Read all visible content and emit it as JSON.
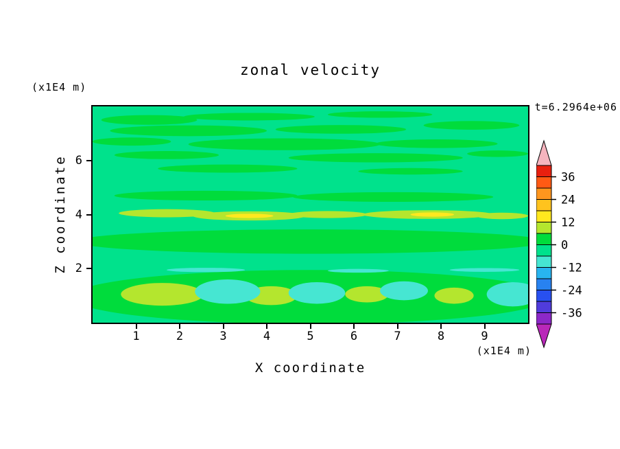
{
  "chart_data": {
    "type": "heatmap",
    "title": "zonal velocity",
    "timestamp": "t=6.2964e+06",
    "xlabel": "X coordinate",
    "ylabel": "Z coordinate",
    "x_units": "(x1E4 m)",
    "y_units": "(x1E4 m)",
    "xlim": [
      0,
      10
    ],
    "ylim": [
      0,
      8
    ],
    "x_ticks": [
      "1",
      "2",
      "3",
      "4",
      "5",
      "6",
      "7",
      "8",
      "9"
    ],
    "y_ticks": [
      "2",
      "4",
      "6"
    ],
    "grid": false,
    "legend_position": "right-colorbar",
    "contour_interval": 6,
    "colorbar": {
      "labels": [
        "36",
        "24",
        "12",
        "0",
        "-12",
        "-24",
        "-36"
      ],
      "label_values": [
        36,
        24,
        12,
        0,
        -12,
        -24,
        -36
      ],
      "range": [
        -42,
        42
      ],
      "above_range_color": "#F5B4BE",
      "below_range_color": "#B928B9",
      "segments_bottom_to_top": [
        {
          "from": -42,
          "to": -36,
          "color": "#8C28C8"
        },
        {
          "from": -36,
          "to": -30,
          "color": "#503CDC"
        },
        {
          "from": -30,
          "to": -24,
          "color": "#2850F0"
        },
        {
          "from": -24,
          "to": -18,
          "color": "#2882F0"
        },
        {
          "from": -18,
          "to": -12,
          "color": "#28B4F0"
        },
        {
          "from": -12,
          "to": -6,
          "color": "#46E6D2"
        },
        {
          "from": -6,
          "to": 0,
          "color": "#00E28C"
        },
        {
          "from": 0,
          "to": 6,
          "color": "#00DC3C"
        },
        {
          "from": 6,
          "to": 12,
          "color": "#B4E62E"
        },
        {
          "from": 12,
          "to": 18,
          "color": "#FFE81E"
        },
        {
          "from": 18,
          "to": 24,
          "color": "#FFC31E"
        },
        {
          "from": 24,
          "to": 30,
          "color": "#FF961E"
        },
        {
          "from": 30,
          "to": 36,
          "color": "#FF5A14"
        },
        {
          "from": 36,
          "to": 42,
          "color": "#E8200F"
        }
      ]
    },
    "level_colors": {
      "neg12_neg6": "#46E6D2",
      "neg6_0": "#00E28C",
      "pos0_6": "#00DC3C",
      "pos6_12": "#B4E62E",
      "pos12_18": "#FFE81E"
    },
    "field": {
      "background_level": "neg6_0",
      "patches": [
        {
          "level": "pos0_6",
          "x": 1.3,
          "z": 7.5,
          "rx": 1.1,
          "rz": 0.18
        },
        {
          "level": "pos0_6",
          "x": 3.6,
          "z": 7.62,
          "rx": 1.5,
          "rz": 0.14
        },
        {
          "level": "pos0_6",
          "x": 6.6,
          "z": 7.7,
          "rx": 1.2,
          "rz": 0.12
        },
        {
          "level": "pos0_6",
          "x": 2.2,
          "z": 7.1,
          "rx": 1.8,
          "rz": 0.2
        },
        {
          "level": "pos0_6",
          "x": 5.7,
          "z": 7.15,
          "rx": 1.5,
          "rz": 0.16
        },
        {
          "level": "pos0_6",
          "x": 8.7,
          "z": 7.3,
          "rx": 1.1,
          "rz": 0.16
        },
        {
          "level": "pos0_6",
          "x": 0.9,
          "z": 6.7,
          "rx": 0.9,
          "rz": 0.15
        },
        {
          "level": "pos0_6",
          "x": 4.4,
          "z": 6.6,
          "rx": 2.2,
          "rz": 0.22
        },
        {
          "level": "pos0_6",
          "x": 7.9,
          "z": 6.62,
          "rx": 1.4,
          "rz": 0.16
        },
        {
          "level": "pos0_6",
          "x": 1.7,
          "z": 6.2,
          "rx": 1.2,
          "rz": 0.15
        },
        {
          "level": "pos0_6",
          "x": 6.5,
          "z": 6.1,
          "rx": 2.0,
          "rz": 0.17
        },
        {
          "level": "pos0_6",
          "x": 9.3,
          "z": 6.25,
          "rx": 0.7,
          "rz": 0.12
        },
        {
          "level": "pos0_6",
          "x": 3.1,
          "z": 5.7,
          "rx": 1.6,
          "rz": 0.15
        },
        {
          "level": "pos0_6",
          "x": 7.3,
          "z": 5.6,
          "rx": 1.2,
          "rz": 0.12
        },
        {
          "level": "pos0_6",
          "x": 2.6,
          "z": 4.7,
          "rx": 2.1,
          "rz": 0.18
        },
        {
          "level": "pos0_6",
          "x": 6.9,
          "z": 4.65,
          "rx": 2.3,
          "rz": 0.18
        },
        {
          "level": "pos6_12",
          "x": 1.7,
          "z": 4.05,
          "rx": 1.1,
          "rz": 0.15
        },
        {
          "level": "pos6_12",
          "x": 3.6,
          "z": 3.95,
          "rx": 1.3,
          "rz": 0.17
        },
        {
          "level": "pos6_12",
          "x": 5.4,
          "z": 4.0,
          "rx": 0.9,
          "rz": 0.13
        },
        {
          "level": "pos6_12",
          "x": 7.7,
          "z": 4.0,
          "rx": 1.5,
          "rz": 0.16
        },
        {
          "level": "pos6_12",
          "x": 9.4,
          "z": 3.95,
          "rx": 0.6,
          "rz": 0.12
        },
        {
          "level": "pos12_18",
          "x": 3.6,
          "z": 3.95,
          "rx": 0.55,
          "rz": 0.08
        },
        {
          "level": "pos12_18",
          "x": 7.8,
          "z": 4.0,
          "rx": 0.5,
          "rz": 0.08
        },
        {
          "level": "pos0_6",
          "x": 5.0,
          "z": 3.0,
          "rx": 5.4,
          "rz": 0.45
        },
        {
          "level": "pos0_6",
          "x": 5.0,
          "z": 0.95,
          "rx": 5.5,
          "rz": 1.0
        },
        {
          "level": "neg12_neg6",
          "x": 2.6,
          "z": 1.95,
          "rx": 0.9,
          "rz": 0.08
        },
        {
          "level": "neg12_neg6",
          "x": 6.1,
          "z": 1.92,
          "rx": 0.7,
          "rz": 0.07
        },
        {
          "level": "neg12_neg6",
          "x": 9.0,
          "z": 1.95,
          "rx": 0.8,
          "rz": 0.07
        },
        {
          "level": "pos6_12",
          "x": 1.6,
          "z": 1.05,
          "rx": 0.95,
          "rz": 0.42
        },
        {
          "level": "pos6_12",
          "x": 4.1,
          "z": 1.0,
          "rx": 0.6,
          "rz": 0.35
        },
        {
          "level": "pos6_12",
          "x": 6.3,
          "z": 1.05,
          "rx": 0.5,
          "rz": 0.3
        },
        {
          "level": "pos6_12",
          "x": 8.3,
          "z": 1.0,
          "rx": 0.45,
          "rz": 0.3
        },
        {
          "level": "neg12_neg6",
          "x": 3.1,
          "z": 1.15,
          "rx": 0.75,
          "rz": 0.45
        },
        {
          "level": "neg12_neg6",
          "x": 5.15,
          "z": 1.1,
          "rx": 0.65,
          "rz": 0.4
        },
        {
          "level": "neg12_neg6",
          "x": 7.15,
          "z": 1.18,
          "rx": 0.55,
          "rz": 0.35
        },
        {
          "level": "neg12_neg6",
          "x": 9.65,
          "z": 1.05,
          "rx": 0.6,
          "rz": 0.45
        }
      ]
    },
    "estimated_values": {
      "note": "approximate zonal velocity read from contour colors, contour interval 6",
      "x": [
        0.5,
        1.5,
        2.5,
        3.5,
        4.5,
        5.5,
        6.5,
        7.5,
        8.5,
        9.5
      ],
      "z": [
        7.5,
        6.5,
        5.5,
        4.5,
        4.0,
        3.0,
        2.0,
        1.0
      ],
      "grid": [
        [
          3,
          -3,
          3,
          3,
          -3,
          3,
          3,
          -3,
          3,
          -3
        ],
        [
          -3,
          3,
          3,
          3,
          -3,
          3,
          3,
          3,
          -3,
          3
        ],
        [
          -3,
          -3,
          3,
          -3,
          -3,
          -3,
          3,
          -3,
          -3,
          -3
        ],
        [
          -3,
          3,
          3,
          -3,
          3,
          -3,
          3,
          3,
          -3,
          -3
        ],
        [
          -3,
          9,
          -3,
          9,
          -3,
          9,
          -3,
          9,
          9,
          -3
        ],
        [
          3,
          3,
          3,
          3,
          3,
          3,
          3,
          3,
          3,
          3
        ],
        [
          -3,
          -3,
          -9,
          -3,
          -3,
          -9,
          -3,
          -3,
          -9,
          -3
        ],
        [
          3,
          9,
          -9,
          3,
          9,
          -9,
          9,
          -9,
          3,
          -9
        ]
      ]
    }
  }
}
